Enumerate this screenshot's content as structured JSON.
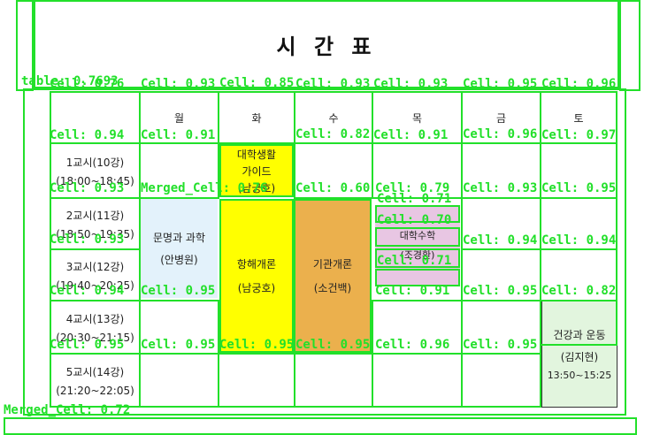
{
  "title": "시 간 표",
  "days": [
    "월",
    "화",
    "수",
    "목",
    "금",
    "토"
  ],
  "periods": [
    {
      "name": "1교시(10강)",
      "time": "(18:00~18:45)"
    },
    {
      "name": "2교시(11강)",
      "time": "(18:50~19:35)"
    },
    {
      "name": "3교시(12강)",
      "time": "(19:40~20:25)"
    },
    {
      "name": "4교시(13강)",
      "time": "(20:30~21:15)"
    },
    {
      "name": "5교시(14강)",
      "time": "(21:20~22:05)"
    }
  ],
  "courses": {
    "guide": {
      "line1": "대학생활",
      "line2": "가이드",
      "teacher": "(남궁호)",
      "color": "#ffff00"
    },
    "civilization": {
      "name": "문명과 과학",
      "teacher": "(안병원)",
      "color": "#e3f2fb"
    },
    "navigation": {
      "name": "항해개론",
      "teacher": "(남궁호)",
      "color": "#ffff00"
    },
    "engine": {
      "name": "기관개론",
      "teacher": "(소건백)",
      "color": "#ebb04d"
    },
    "math": {
      "name": "대학수학",
      "teacher": "(조경환)",
      "color": "#e8c6e3"
    },
    "health": {
      "name": "건강과 운동",
      "teacher": "(김지현)",
      "time": "13:50~15:25",
      "color": "#e2f5de"
    }
  },
  "detections": {
    "table": "table: 0.7693",
    "c_0_0": "Cell: 0.76",
    "c_0_1": "Cell: 0.93",
    "c_0_2": "Cell: 0.85",
    "c_0_3": "Cell: 0.93",
    "c_0_4": "Cell: 0.93",
    "c_0_5": "Cell: 0.95",
    "c_0_6": "Cell: 0.96",
    "c_1_0": "Cell: 0.94",
    "c_1_1": "Cell: 0.91",
    "c_1_2": "Cell: 0.82",
    "c_1_3": "Cell: 0.91",
    "c_1_4": "Cell: 0.96",
    "c_1_5": "Cell: 0.97",
    "c_2_0": "Cell: 0.93",
    "c_2_1": "Merged_Cell: 0.76",
    "c_2_2": "Cell: 0.60",
    "c_2_3": "Cell: 0.79",
    "c_2_4": "Cell: 0.93",
    "c_2_5": "Cell: 0.95",
    "c_m1": "Cell: 0.71",
    "c_m2": "Cell: 0.70",
    "c_m3": "Cell: 0.71",
    "c_3_0": "Cell: 0.93",
    "c_3_1": "Cell: 0.94",
    "c_3_2": "Cell: 0.94",
    "c_4_0": "Cell: 0.94",
    "c_4_1": "Cell: 0.95",
    "c_4_2": "Cell: 0.91",
    "c_4_3": "Cell: 0.95",
    "c_4_4": "Cell: 0.82",
    "c_5_0": "Cell: 0.95",
    "c_5_1": "Cell: 0.95",
    "c_5_2": "Cell: 0.95",
    "c_5_3": "Cell: 0.95",
    "c_5_4": "Cell: 0.96",
    "c_5_5": "Cell: 0.95",
    "merged_bottom": "Merged_Cell: 0.72"
  }
}
